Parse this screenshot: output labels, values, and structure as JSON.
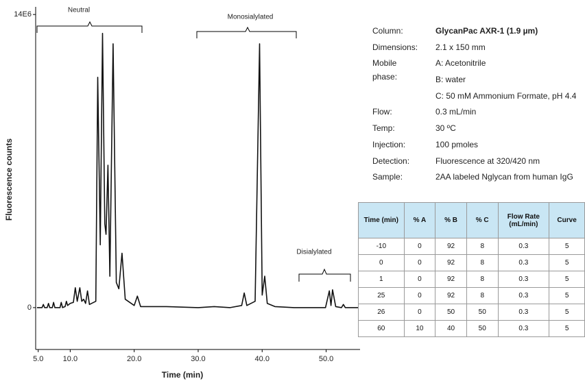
{
  "chart_data": {
    "type": "line",
    "xlabel": "Time (min)",
    "ylabel": "Fluorescence counts",
    "annotations": [
      "Neutral",
      "Monosialylated",
      "Disialylated"
    ],
    "xlim": [
      4.6,
      55.3
    ],
    "xticks": [
      {
        "value": 5,
        "label": "5.0"
      },
      {
        "value": 10,
        "label": "10.0"
      },
      {
        "value": 20,
        "label": "20.0"
      },
      {
        "value": 30,
        "label": "30.0"
      },
      {
        "value": 40,
        "label": "40.0"
      },
      {
        "value": 50,
        "label": "50.0"
      }
    ],
    "ylim": [
      -2000000,
      14300000
    ],
    "yticks": [
      0,
      {
        "value": 14000000,
        "label": "14E6"
      }
    ],
    "color": "#111111",
    "x": [
      4.8,
      5.6,
      5.8,
      6.0,
      6.4,
      6.6,
      6.8,
      7.2,
      7.4,
      7.6,
      8.4,
      8.6,
      8.8,
      9.2,
      9.4,
      9.6,
      10.0,
      10.5,
      10.8,
      11.1,
      11.5,
      11.8,
      12.1,
      12.4,
      12.7,
      13.0,
      14.0,
      14.3,
      14.7,
      15.05,
      15.4,
      15.6,
      15.9,
      16.2,
      16.7,
      17.2,
      17.6,
      18.1,
      18.6,
      20.0,
      20.5,
      21.0,
      25,
      30,
      32.5,
      35,
      36.8,
      37.2,
      37.6,
      38.9,
      39.6,
      40.0,
      40.4,
      40.8,
      42,
      45,
      49.9,
      50.5,
      50.75,
      51.0,
      51.5,
      52.4,
      52.7,
      53.0,
      55.0
    ],
    "values": [
      0,
      0,
      150000,
      0,
      0,
      200000,
      0,
      0,
      250000,
      0,
      0,
      250000,
      0,
      50000,
      300000,
      100000,
      200000,
      250000,
      950000,
      300000,
      950000,
      300000,
      400000,
      200000,
      800000,
      150000,
      300000,
      11000000,
      3000000,
      13100000,
      4000000,
      3500000,
      6800000,
      1500000,
      12600000,
      1200000,
      900000,
      2600000,
      400000,
      100000,
      550000,
      50000,
      50000,
      0,
      50000,
      0,
      100000,
      700000,
      100000,
      300000,
      12600000,
      600000,
      1500000,
      200000,
      50000,
      0,
      0,
      800000,
      100000,
      850000,
      50000,
      0,
      150000,
      0,
      0
    ]
  },
  "conditions": [
    {
      "label": "Column:",
      "values": [
        "GlycanPac AXR-1 (1.9 µm)"
      ]
    },
    {
      "label": "Dimensions:",
      "values": [
        "2.1 x 150  mm"
      ]
    },
    {
      "label": "Mobile phase:",
      "values": [
        "A: Acetonitrile",
        "B: water",
        "C: 50 mM Ammonium Formate, pH 4.4"
      ]
    },
    {
      "label": "Flow:",
      "values": [
        "0.3 mL/min"
      ]
    },
    {
      "label": "Temp:",
      "values": [
        "30 ºC"
      ]
    },
    {
      "label": "Injection:",
      "values": [
        "100 pmoles"
      ]
    },
    {
      "label": "Detection:",
      "values": [
        "Fluorescence at 320/420 nm"
      ]
    },
    {
      "label": "Sample:",
      "values": [
        "2AA labeled Nglycan from human IgG"
      ]
    }
  ],
  "table": {
    "header": [
      "Time (min)",
      "% A",
      "% B",
      "% C",
      "Flow Rate (mL/min)",
      "Curve"
    ],
    "rows": [
      [
        -10,
        0,
        92,
        8,
        0.3,
        5
      ],
      [
        0,
        0,
        92,
        8,
        0.3,
        5
      ],
      [
        1,
        0,
        92,
        8,
        0.3,
        5
      ],
      [
        25,
        0,
        92,
        8,
        0.3,
        5
      ],
      [
        26,
        0,
        50,
        50,
        0.3,
        5
      ],
      [
        60,
        10,
        40,
        50,
        0.3,
        5
      ]
    ]
  }
}
